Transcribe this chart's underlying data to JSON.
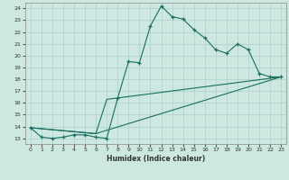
{
  "xlabel": "Humidex (Indice chaleur)",
  "bg_color": "#cce8e0",
  "grid_color": "#b0cec8",
  "line_color": "#1a6e60",
  "xlim": [
    -0.5,
    23.5
  ],
  "ylim": [
    12.5,
    24.5
  ],
  "yticks": [
    13,
    14,
    15,
    16,
    17,
    18,
    19,
    20,
    21,
    22,
    23,
    24
  ],
  "xticks": [
    0,
    1,
    2,
    3,
    4,
    5,
    6,
    7,
    8,
    9,
    10,
    11,
    12,
    13,
    14,
    15,
    16,
    17,
    18,
    19,
    20,
    21,
    22,
    23
  ],
  "line1_x": [
    0,
    1,
    2,
    3,
    4,
    5,
    6,
    7,
    8,
    9,
    10,
    11,
    12,
    13,
    14,
    15,
    16,
    17,
    18,
    19,
    20,
    21,
    22,
    23
  ],
  "line1_y": [
    13.9,
    13.1,
    13.0,
    13.1,
    13.3,
    13.3,
    13.1,
    13.0,
    16.4,
    19.5,
    19.4,
    22.5,
    24.2,
    23.3,
    23.1,
    22.2,
    21.5,
    20.5,
    20.2,
    21.0,
    20.5,
    18.5,
    18.2,
    18.2
  ],
  "line2_x": [
    0,
    6,
    7,
    23
  ],
  "line2_y": [
    13.9,
    13.4,
    16.3,
    18.2
  ],
  "line3_x": [
    0,
    6,
    23
  ],
  "line3_y": [
    13.9,
    13.4,
    18.2
  ]
}
